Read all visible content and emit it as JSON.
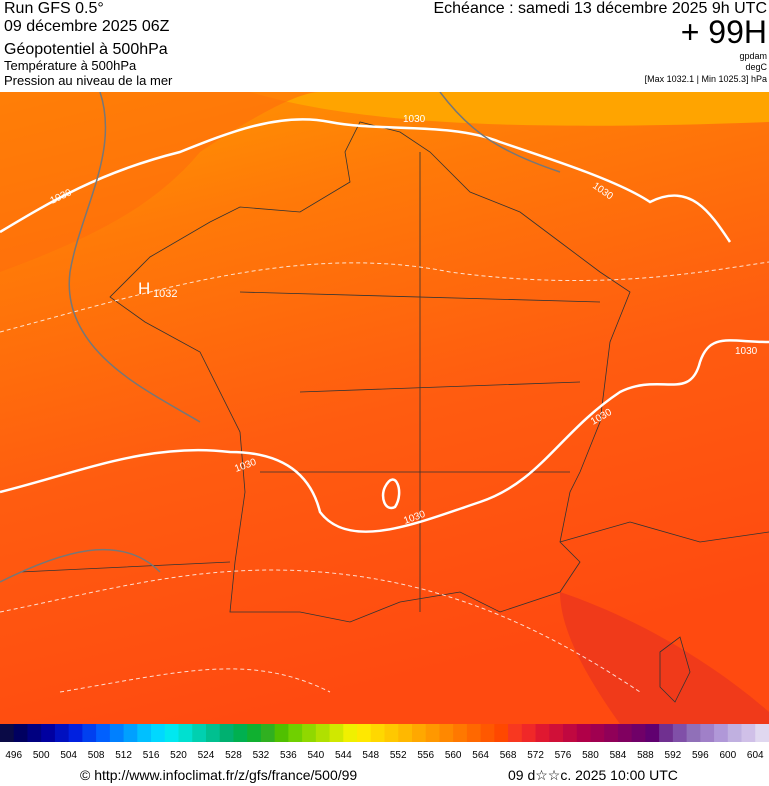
{
  "header": {
    "run": "Run GFS 0.5°",
    "date": "09 décembre 2025 06Z",
    "layer1": "Géopotentiel à 500hPa",
    "layer2": "Température à 500hPa",
    "layer3": "Pression au niveau de la mer",
    "valid": "Echéance : samedi 13 décembre 2025 9h UTC",
    "lead": "+ 99H",
    "unit1": "gpdam",
    "unit2": "degC",
    "range": "[Max 1032.1 | Min 1025.3] hPa"
  },
  "map": {
    "contour_labels": [
      "1030",
      "1030",
      "1030",
      "1030",
      "1030",
      "1030",
      "1030"
    ],
    "high": "H",
    "high_value": "1032"
  },
  "colorbar": {
    "labels": [
      496,
      500,
      504,
      508,
      512,
      516,
      520,
      524,
      528,
      532,
      536,
      540,
      544,
      548,
      552,
      556,
      560,
      564,
      568,
      572,
      576,
      580,
      584,
      588,
      592,
      596,
      600,
      604
    ],
    "colors": [
      "#0a0a46",
      "#000060",
      "#000080",
      "#0000a0",
      "#0010c0",
      "#0020e0",
      "#0040f0",
      "#0060ff",
      "#0080ff",
      "#00a0ff",
      "#00c0ff",
      "#00d8ff",
      "#00e8f0",
      "#00e0d0",
      "#00d0b0",
      "#00c090",
      "#00b070",
      "#00b050",
      "#10b030",
      "#30b020",
      "#50c000",
      "#70d000",
      "#90d800",
      "#b0e000",
      "#d0e800",
      "#f0f000",
      "#ffe800",
      "#ffd800",
      "#ffc800",
      "#ffb800",
      "#ffa800",
      "#ff9800",
      "#ff8800",
      "#ff7800",
      "#ff6800",
      "#ff5800",
      "#ff4800",
      "#f83820",
      "#f02828",
      "#e01830",
      "#d01038",
      "#c00840",
      "#b00048",
      "#a00050",
      "#900058",
      "#800060",
      "#700068",
      "#600070",
      "#703090",
      "#8050a8",
      "#9070b8",
      "#a080c8",
      "#b098d8",
      "#c0b0e0",
      "#d0c0e8",
      "#e0d8f0"
    ]
  },
  "footer": {
    "url": "© http://www.infoclimat.fr/z/gfs/france/500/99",
    "timestamp": "09 d☆☆c. 2025 10:00 UTC"
  }
}
